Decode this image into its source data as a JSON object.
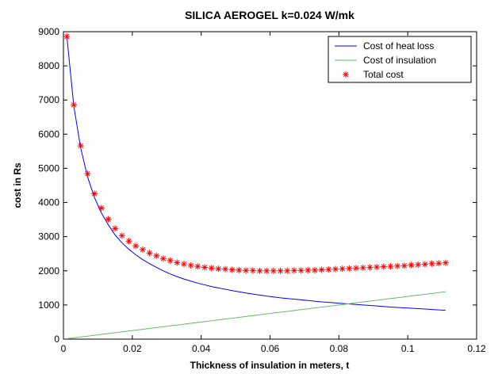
{
  "chart_data": {
    "type": "line",
    "title": "SILICA AEROGEL k=0.024 W/mk",
    "xlabel": "Thickness of insulation in meters, t",
    "ylabel": "cost in Rs",
    "xlim": [
      0,
      0.12
    ],
    "ylim": [
      0,
      9000
    ],
    "xticks": [
      0,
      0.02,
      0.04,
      0.06,
      0.08,
      0.1,
      0.12
    ],
    "xtick_labels": [
      "0",
      "0.02",
      "0.04",
      "0.06",
      "0.08",
      "0.1",
      "0.12"
    ],
    "yticks": [
      0,
      1000,
      2000,
      3000,
      4000,
      5000,
      6000,
      7000,
      8000,
      9000
    ],
    "ytick_labels": [
      "0",
      "1000",
      "2000",
      "3000",
      "4000",
      "5000",
      "6000",
      "7000",
      "8000",
      "9000"
    ],
    "grid": false,
    "legend_position": "top-right",
    "x": [
      0.001,
      0.003,
      0.005,
      0.007,
      0.009,
      0.011,
      0.013,
      0.015,
      0.017,
      0.019,
      0.021,
      0.023,
      0.025,
      0.027,
      0.029,
      0.031,
      0.033,
      0.035,
      0.037,
      0.039,
      0.041,
      0.043,
      0.045,
      0.047,
      0.049,
      0.051,
      0.053,
      0.055,
      0.057,
      0.059,
      0.061,
      0.063,
      0.065,
      0.067,
      0.069,
      0.071,
      0.073,
      0.075,
      0.077,
      0.079,
      0.081,
      0.083,
      0.085,
      0.087,
      0.089,
      0.091,
      0.093,
      0.095,
      0.097,
      0.099,
      0.101,
      0.103,
      0.105,
      0.107,
      0.109,
      0.111
    ],
    "series": [
      {
        "name": "Cost of heat loss",
        "color": "#0000ff",
        "style": "line",
        "values": [
          8850,
          6830,
          5600,
          4750,
          4150,
          3700,
          3350,
          3050,
          2820,
          2630,
          2470,
          2330,
          2210,
          2100,
          2000,
          1910,
          1830,
          1760,
          1700,
          1640,
          1590,
          1540,
          1500,
          1460,
          1420,
          1385,
          1350,
          1320,
          1290,
          1260,
          1235,
          1210,
          1190,
          1170,
          1150,
          1130,
          1110,
          1090,
          1075,
          1060,
          1045,
          1030,
          1015,
          1000,
          985,
          970,
          955,
          940,
          928,
          916,
          904,
          892,
          880,
          868,
          856,
          845
        ]
      },
      {
        "name": "Cost of insulation",
        "color": "#66bb66",
        "style": "line",
        "values": [
          13,
          38,
          63,
          88,
          113,
          138,
          163,
          188,
          213,
          238,
          263,
          288,
          313,
          338,
          363,
          388,
          413,
          438,
          463,
          488,
          513,
          538,
          563,
          588,
          613,
          638,
          663,
          688,
          713,
          738,
          763,
          788,
          813,
          838,
          863,
          888,
          913,
          938,
          963,
          988,
          1013,
          1038,
          1063,
          1088,
          1113,
          1138,
          1163,
          1188,
          1213,
          1238,
          1263,
          1288,
          1313,
          1338,
          1363,
          1388
        ]
      },
      {
        "name": "Total cost",
        "color": "#ff0000",
        "style": "markers",
        "marker": "asterisk",
        "values": [
          8860,
          6860,
          5660,
          4840,
          4260,
          3840,
          3510,
          3240,
          3030,
          2870,
          2730,
          2620,
          2520,
          2440,
          2360,
          2300,
          2240,
          2200,
          2160,
          2130,
          2100,
          2080,
          2060,
          2050,
          2030,
          2020,
          2010,
          2010,
          2000,
          2000,
          2000,
          2000,
          2000,
          2010,
          2010,
          2020,
          2020,
          2030,
          2040,
          2050,
          2060,
          2070,
          2080,
          2090,
          2100,
          2110,
          2120,
          2130,
          2140,
          2150,
          2170,
          2180,
          2190,
          2210,
          2220,
          2235
        ]
      }
    ]
  }
}
